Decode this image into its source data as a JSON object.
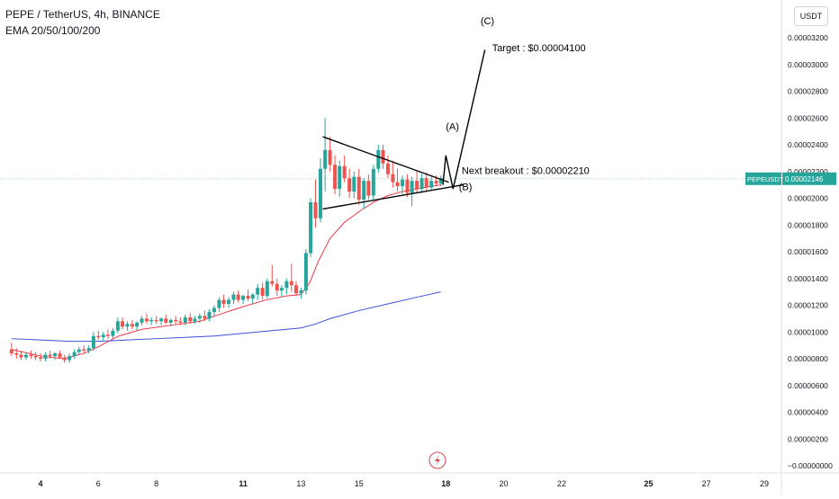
{
  "header": {
    "symbol_line": "PEPE / TetherUS, 4h, BINANCE",
    "indicator_line": "EMA 20/50/100/200"
  },
  "currency_button": "USDT",
  "last_price": {
    "label": "PEPEUSDT",
    "value": "0.00002146"
  },
  "colors": {
    "up": "#26a69a",
    "down": "#ef5350",
    "ema_fast": "#f23645",
    "ema_slow": "#3d4fd6",
    "price_line": "#9ad7d2",
    "annotation": "#000000"
  },
  "icons": {
    "replay": "lightning-icon"
  },
  "chart_data": {
    "type": "candlestick",
    "y_axis": {
      "unit": "USDT",
      "ticks": [
        {
          "value": 3.2e-05,
          "label": "0.00003200"
        },
        {
          "value": 3e-05,
          "label": "0.00003000"
        },
        {
          "value": 2.8e-05,
          "label": "0.00002800"
        },
        {
          "value": 2.6e-05,
          "label": "0.00002600"
        },
        {
          "value": 2.4e-05,
          "label": "0.00002400"
        },
        {
          "value": 2.2e-05,
          "label": "0.00002200"
        },
        {
          "value": 2e-05,
          "label": "0.00002000"
        },
        {
          "value": 1.8e-05,
          "label": "0.00001800"
        },
        {
          "value": 1.6e-05,
          "label": "0.00001600"
        },
        {
          "value": 1.4e-05,
          "label": "0.00001400"
        },
        {
          "value": 1.2e-05,
          "label": "0.00001200"
        },
        {
          "value": 1e-05,
          "label": "0.00001000"
        },
        {
          "value": 8e-06,
          "label": "0.00000800"
        },
        {
          "value": 6e-06,
          "label": "0.00000600"
        },
        {
          "value": 4e-06,
          "label": "0.00000400"
        },
        {
          "value": 2e-06,
          "label": "0.00000200"
        },
        {
          "value": 0,
          "label": "−0.00000000"
        }
      ]
    },
    "x_axis": {
      "ticks": [
        {
          "day": 4,
          "label": "4",
          "bold": true
        },
        {
          "day": 6,
          "label": "6",
          "bold": false
        },
        {
          "day": 8,
          "label": "8",
          "bold": false
        },
        {
          "day": 11,
          "label": "11",
          "bold": true
        },
        {
          "day": 13,
          "label": "13",
          "bold": false
        },
        {
          "day": 15,
          "label": "15",
          "bold": false
        },
        {
          "day": 18,
          "label": "18",
          "bold": true
        },
        {
          "day": 20,
          "label": "20",
          "bold": false
        },
        {
          "day": 22,
          "label": "22",
          "bold": false
        },
        {
          "day": 25,
          "label": "25",
          "bold": true
        },
        {
          "day": 27,
          "label": "27",
          "bold": false
        },
        {
          "day": 29,
          "label": "29",
          "bold": false
        }
      ]
    },
    "candles": [
      {
        "day": 3.0,
        "o": 8.7e-06,
        "h": 9.2e-06,
        "l": 8.2e-06,
        "c": 8.4e-06
      },
      {
        "day": 3.17,
        "o": 8.4e-06,
        "h": 8.8e-06,
        "l": 8e-06,
        "c": 8.3e-06
      },
      {
        "day": 3.33,
        "o": 8.3e-06,
        "h": 8.6e-06,
        "l": 7.9e-06,
        "c": 8.1e-06
      },
      {
        "day": 3.5,
        "o": 8.1e-06,
        "h": 8.5e-06,
        "l": 7.9e-06,
        "c": 8.3e-06
      },
      {
        "day": 3.67,
        "o": 8.3e-06,
        "h": 8.6e-06,
        "l": 8e-06,
        "c": 8.2e-06
      },
      {
        "day": 3.83,
        "o": 8.2e-06,
        "h": 8.5e-06,
        "l": 7.9e-06,
        "c": 8.1e-06
      },
      {
        "day": 4.0,
        "o": 8.1e-06,
        "h": 8.4e-06,
        "l": 7.8e-06,
        "c": 8e-06
      },
      {
        "day": 4.17,
        "o": 8e-06,
        "h": 8.5e-06,
        "l": 7.8e-06,
        "c": 8.3e-06
      },
      {
        "day": 4.33,
        "o": 8.3e-06,
        "h": 8.6e-06,
        "l": 8e-06,
        "c": 8.2e-06
      },
      {
        "day": 4.5,
        "o": 8.2e-06,
        "h": 8.5e-06,
        "l": 7.9e-06,
        "c": 8.4e-06
      },
      {
        "day": 4.67,
        "o": 8.4e-06,
        "h": 8.6e-06,
        "l": 8e-06,
        "c": 8.1e-06
      },
      {
        "day": 4.83,
        "o": 8.1e-06,
        "h": 8.3e-06,
        "l": 7.7e-06,
        "c": 7.9e-06
      },
      {
        "day": 5.0,
        "o": 7.9e-06,
        "h": 8.4e-06,
        "l": 7.7e-06,
        "c": 8.2e-06
      },
      {
        "day": 5.17,
        "o": 8.2e-06,
        "h": 8.7e-06,
        "l": 8e-06,
        "c": 8.5e-06
      },
      {
        "day": 5.33,
        "o": 8.5e-06,
        "h": 8.9e-06,
        "l": 8.3e-06,
        "c": 8.7e-06
      },
      {
        "day": 5.5,
        "o": 8.7e-06,
        "h": 9e-06,
        "l": 8.4e-06,
        "c": 8.6e-06
      },
      {
        "day": 5.67,
        "o": 8.6e-06,
        "h": 9e-06,
        "l": 8.4e-06,
        "c": 8.8e-06
      },
      {
        "day": 5.83,
        "o": 8.8e-06,
        "h": 1e-05,
        "l": 8.6e-06,
        "c": 9.7e-06
      },
      {
        "day": 6.0,
        "o": 9.7e-06,
        "h": 1.01e-05,
        "l": 9.4e-06,
        "c": 9.6e-06
      },
      {
        "day": 6.17,
        "o": 9.6e-06,
        "h": 1e-05,
        "l": 9.3e-06,
        "c": 9.8e-06
      },
      {
        "day": 6.33,
        "o": 9.8e-06,
        "h": 1.02e-05,
        "l": 9.5e-06,
        "c": 9.7e-06
      },
      {
        "day": 6.5,
        "o": 9.7e-06,
        "h": 1.03e-05,
        "l": 9.5e-06,
        "c": 1.01e-05
      },
      {
        "day": 6.67,
        "o": 1.01e-05,
        "h": 1.11e-05,
        "l": 9.9e-06,
        "c": 1.08e-05
      },
      {
        "day": 6.83,
        "o": 1.08e-05,
        "h": 1.11e-05,
        "l": 1.02e-05,
        "c": 1.04e-05
      },
      {
        "day": 7.0,
        "o": 1.04e-05,
        "h": 1.08e-05,
        "l": 1.01e-05,
        "c": 1.06e-05
      },
      {
        "day": 7.17,
        "o": 1.06e-05,
        "h": 1.09e-05,
        "l": 1.02e-05,
        "c": 1.04e-05
      },
      {
        "day": 7.33,
        "o": 1.04e-05,
        "h": 1.08e-05,
        "l": 1.01e-05,
        "c": 1.07e-05
      },
      {
        "day": 7.5,
        "o": 1.07e-05,
        "h": 1.12e-05,
        "l": 1.05e-05,
        "c": 1.1e-05
      },
      {
        "day": 7.67,
        "o": 1.1e-05,
        "h": 1.14e-05,
        "l": 1.06e-05,
        "c": 1.08e-05
      },
      {
        "day": 7.83,
        "o": 1.08e-05,
        "h": 1.11e-05,
        "l": 1.05e-05,
        "c": 1.09e-05
      },
      {
        "day": 8.0,
        "o": 1.09e-05,
        "h": 1.12e-05,
        "l": 1.06e-05,
        "c": 1.08e-05
      },
      {
        "day": 8.17,
        "o": 1.08e-05,
        "h": 1.11e-05,
        "l": 1.05e-05,
        "c": 1.1e-05
      },
      {
        "day": 8.33,
        "o": 1.1e-05,
        "h": 1.13e-05,
        "l": 1.06e-05,
        "c": 1.07e-05
      },
      {
        "day": 8.5,
        "o": 1.07e-05,
        "h": 1.1e-05,
        "l": 1.04e-05,
        "c": 1.09e-05
      },
      {
        "day": 8.67,
        "o": 1.09e-05,
        "h": 1.12e-05,
        "l": 1.06e-05,
        "c": 1.08e-05
      },
      {
        "day": 8.83,
        "o": 1.08e-05,
        "h": 1.11e-05,
        "l": 1.05e-05,
        "c": 1.07e-05
      },
      {
        "day": 9.0,
        "o": 1.07e-05,
        "h": 1.13e-05,
        "l": 1.05e-05,
        "c": 1.11e-05
      },
      {
        "day": 9.17,
        "o": 1.11e-05,
        "h": 1.14e-05,
        "l": 1.06e-05,
        "c": 1.08e-05
      },
      {
        "day": 9.33,
        "o": 1.08e-05,
        "h": 1.12e-05,
        "l": 1.06e-05,
        "c": 1.1e-05
      },
      {
        "day": 9.5,
        "o": 1.1e-05,
        "h": 1.14e-05,
        "l": 1.07e-05,
        "c": 1.12e-05
      },
      {
        "day": 9.67,
        "o": 1.12e-05,
        "h": 1.16e-05,
        "l": 1.08e-05,
        "c": 1.1e-05
      },
      {
        "day": 9.83,
        "o": 1.1e-05,
        "h": 1.17e-05,
        "l": 1.08e-05,
        "c": 1.15e-05
      },
      {
        "day": 10.0,
        "o": 1.15e-05,
        "h": 1.2e-05,
        "l": 1.12e-05,
        "c": 1.18e-05
      },
      {
        "day": 10.17,
        "o": 1.18e-05,
        "h": 1.26e-05,
        "l": 1.15e-05,
        "c": 1.24e-05
      },
      {
        "day": 10.33,
        "o": 1.24e-05,
        "h": 1.28e-05,
        "l": 1.18e-05,
        "c": 1.21e-05
      },
      {
        "day": 10.5,
        "o": 1.21e-05,
        "h": 1.26e-05,
        "l": 1.18e-05,
        "c": 1.24e-05
      },
      {
        "day": 10.67,
        "o": 1.24e-05,
        "h": 1.3e-05,
        "l": 1.21e-05,
        "c": 1.28e-05
      },
      {
        "day": 10.83,
        "o": 1.28e-05,
        "h": 1.31e-05,
        "l": 1.22e-05,
        "c": 1.24e-05
      },
      {
        "day": 11.0,
        "o": 1.24e-05,
        "h": 1.28e-05,
        "l": 1.21e-05,
        "c": 1.27e-05
      },
      {
        "day": 11.17,
        "o": 1.27e-05,
        "h": 1.32e-05,
        "l": 1.23e-05,
        "c": 1.25e-05
      },
      {
        "day": 11.33,
        "o": 1.25e-05,
        "h": 1.29e-05,
        "l": 1.21e-05,
        "c": 1.28e-05
      },
      {
        "day": 11.5,
        "o": 1.28e-05,
        "h": 1.36e-05,
        "l": 1.24e-05,
        "c": 1.33e-05
      },
      {
        "day": 11.67,
        "o": 1.33e-05,
        "h": 1.37e-05,
        "l": 1.24e-05,
        "c": 1.27e-05
      },
      {
        "day": 11.83,
        "o": 1.27e-05,
        "h": 1.4e-05,
        "l": 1.25e-05,
        "c": 1.38e-05
      },
      {
        "day": 12.0,
        "o": 1.38e-05,
        "h": 1.5e-05,
        "l": 1.34e-05,
        "c": 1.36e-05
      },
      {
        "day": 12.17,
        "o": 1.36e-05,
        "h": 1.4e-05,
        "l": 1.27e-05,
        "c": 1.31e-05
      },
      {
        "day": 12.33,
        "o": 1.31e-05,
        "h": 1.35e-05,
        "l": 1.26e-05,
        "c": 1.33e-05
      },
      {
        "day": 12.5,
        "o": 1.33e-05,
        "h": 1.4e-05,
        "l": 1.28e-05,
        "c": 1.38e-05
      },
      {
        "day": 12.67,
        "o": 1.38e-05,
        "h": 1.51e-05,
        "l": 1.3e-05,
        "c": 1.35e-05
      },
      {
        "day": 12.83,
        "o": 1.35e-05,
        "h": 1.38e-05,
        "l": 1.27e-05,
        "c": 1.29e-05
      },
      {
        "day": 13.0,
        "o": 1.29e-05,
        "h": 1.33e-05,
        "l": 1.25e-05,
        "c": 1.31e-05
      },
      {
        "day": 13.17,
        "o": 1.31e-05,
        "h": 1.62e-05,
        "l": 1.28e-05,
        "c": 1.59e-05
      },
      {
        "day": 13.33,
        "o": 1.59e-05,
        "h": 2e-05,
        "l": 1.56e-05,
        "c": 1.97e-05
      },
      {
        "day": 13.5,
        "o": 1.97e-05,
        "h": 2.14e-05,
        "l": 1.78e-05,
        "c": 1.85e-05
      },
      {
        "day": 13.67,
        "o": 1.85e-05,
        "h": 2.3e-05,
        "l": 1.82e-05,
        "c": 2.22e-05
      },
      {
        "day": 13.83,
        "o": 2.22e-05,
        "h": 2.6e-05,
        "l": 2.05e-05,
        "c": 2.36e-05
      },
      {
        "day": 14.0,
        "o": 2.36e-05,
        "h": 2.46e-05,
        "l": 2.2e-05,
        "c": 2.25e-05
      },
      {
        "day": 14.17,
        "o": 2.25e-05,
        "h": 2.32e-05,
        "l": 2.03e-05,
        "c": 2.07e-05
      },
      {
        "day": 14.33,
        "o": 2.07e-05,
        "h": 2.28e-05,
        "l": 2.01e-05,
        "c": 2.24e-05
      },
      {
        "day": 14.5,
        "o": 2.24e-05,
        "h": 2.32e-05,
        "l": 2.12e-05,
        "c": 2.15e-05
      },
      {
        "day": 14.67,
        "o": 2.15e-05,
        "h": 2.22e-05,
        "l": 2e-05,
        "c": 2.05e-05
      },
      {
        "day": 14.83,
        "o": 2.05e-05,
        "h": 2.2e-05,
        "l": 2e-05,
        "c": 2.16e-05
      },
      {
        "day": 15.0,
        "o": 2.16e-05,
        "h": 2.22e-05,
        "l": 1.95e-05,
        "c": 1.99e-05
      },
      {
        "day": 15.17,
        "o": 1.99e-05,
        "h": 2.15e-05,
        "l": 1.92e-05,
        "c": 2.13e-05
      },
      {
        "day": 15.33,
        "o": 2.13e-05,
        "h": 2.18e-05,
        "l": 1.99e-05,
        "c": 2.02e-05
      },
      {
        "day": 15.5,
        "o": 2.02e-05,
        "h": 2.25e-05,
        "l": 1.99e-05,
        "c": 2.22e-05
      },
      {
        "day": 15.67,
        "o": 2.22e-05,
        "h": 2.4e-05,
        "l": 2.19e-05,
        "c": 2.36e-05
      },
      {
        "day": 15.83,
        "o": 2.36e-05,
        "h": 2.4e-05,
        "l": 2.22e-05,
        "c": 2.26e-05
      },
      {
        "day": 16.0,
        "o": 2.26e-05,
        "h": 2.32e-05,
        "l": 2.15e-05,
        "c": 2.18e-05
      },
      {
        "day": 16.17,
        "o": 2.18e-05,
        "h": 2.28e-05,
        "l": 2.08e-05,
        "c": 2.12e-05
      },
      {
        "day": 16.33,
        "o": 2.12e-05,
        "h": 2.22e-05,
        "l": 2.05e-05,
        "c": 2.09e-05
      },
      {
        "day": 16.5,
        "o": 2.09e-05,
        "h": 2.17e-05,
        "l": 2.03e-05,
        "c": 2.14e-05
      },
      {
        "day": 16.67,
        "o": 2.14e-05,
        "h": 2.18e-05,
        "l": 2.01e-05,
        "c": 2.04e-05
      },
      {
        "day": 16.83,
        "o": 2.04e-05,
        "h": 2.16e-05,
        "l": 1.94e-05,
        "c": 2.13e-05
      },
      {
        "day": 17.0,
        "o": 2.13e-05,
        "h": 2.2e-05,
        "l": 2.04e-05,
        "c": 2.07e-05
      },
      {
        "day": 17.17,
        "o": 2.07e-05,
        "h": 2.18e-05,
        "l": 2.04e-05,
        "c": 2.15e-05
      },
      {
        "day": 17.33,
        "o": 2.15e-05,
        "h": 2.19e-05,
        "l": 2.05e-05,
        "c": 2.08e-05
      },
      {
        "day": 17.5,
        "o": 2.08e-05,
        "h": 2.16e-05,
        "l": 2.06e-05,
        "c": 2.13e-05
      },
      {
        "day": 17.67,
        "o": 2.13e-05,
        "h": 2.17e-05,
        "l": 2.09e-05,
        "c": 2.11e-05
      },
      {
        "day": 17.83,
        "o": 2.11e-05,
        "h": 2.17e-05,
        "l": 2.09e-05,
        "c": 2.15e-05
      }
    ],
    "ema_fast": [
      {
        "day": 3.0,
        "v": 8.7e-06
      },
      {
        "day": 4.0,
        "v": 8.2e-06
      },
      {
        "day": 4.8,
        "v": 8e-06
      },
      {
        "day": 5.5,
        "v": 8.4e-06
      },
      {
        "day": 6.0,
        "v": 8.9e-06
      },
      {
        "day": 6.7,
        "v": 9.7e-06
      },
      {
        "day": 7.5,
        "v": 1.02e-05
      },
      {
        "day": 8.5,
        "v": 1.05e-05
      },
      {
        "day": 9.5,
        "v": 1.08e-05
      },
      {
        "day": 10.3,
        "v": 1.14e-05
      },
      {
        "day": 11.0,
        "v": 1.19e-05
      },
      {
        "day": 11.8,
        "v": 1.24e-05
      },
      {
        "day": 12.5,
        "v": 1.27e-05
      },
      {
        "day": 13.0,
        "v": 1.28e-05
      },
      {
        "day": 13.3,
        "v": 1.37e-05
      },
      {
        "day": 13.6,
        "v": 1.53e-05
      },
      {
        "day": 14.0,
        "v": 1.7e-05
      },
      {
        "day": 14.5,
        "v": 1.82e-05
      },
      {
        "day": 15.0,
        "v": 1.9e-05
      },
      {
        "day": 15.5,
        "v": 1.97e-05
      },
      {
        "day": 16.0,
        "v": 2.02e-05
      },
      {
        "day": 16.5,
        "v": 2.05e-05
      },
      {
        "day": 17.0,
        "v": 2.07e-05
      },
      {
        "day": 17.5,
        "v": 2.09e-05
      },
      {
        "day": 17.83,
        "v": 2.1e-05
      }
    ],
    "ema_slow": [
      {
        "day": 3.0,
        "v": 9.5e-06
      },
      {
        "day": 4.0,
        "v": 9.4e-06
      },
      {
        "day": 5.0,
        "v": 9.3e-06
      },
      {
        "day": 6.0,
        "v": 9.3e-06
      },
      {
        "day": 7.0,
        "v": 9.4e-06
      },
      {
        "day": 8.0,
        "v": 9.5e-06
      },
      {
        "day": 9.0,
        "v": 9.6e-06
      },
      {
        "day": 10.0,
        "v": 9.7e-06
      },
      {
        "day": 11.0,
        "v": 9.9e-06
      },
      {
        "day": 12.0,
        "v": 1.01e-05
      },
      {
        "day": 13.0,
        "v": 1.03e-05
      },
      {
        "day": 13.5,
        "v": 1.06e-05
      },
      {
        "day": 14.0,
        "v": 1.1e-05
      },
      {
        "day": 15.0,
        "v": 1.16e-05
      },
      {
        "day": 16.0,
        "v": 1.21e-05
      },
      {
        "day": 17.0,
        "v": 1.26e-05
      },
      {
        "day": 17.83,
        "v": 1.3e-05
      }
    ],
    "drawings": {
      "triangle_upper": [
        {
          "day": 13.75,
          "v": 2.46e-05
        },
        {
          "day": 18.1,
          "v": 2.12e-05
        }
      ],
      "triangle_lower": [
        {
          "day": 13.75,
          "v": 1.92e-05
        },
        {
          "day": 18.6,
          "v": 2.1e-05
        }
      ],
      "wave_path": [
        {
          "day": 17.9,
          "v": 2.1e-05
        },
        {
          "day": 18.0,
          "v": 2.32e-05
        },
        {
          "day": 18.25,
          "v": 2.07e-05
        },
        {
          "day": 19.35,
          "v": 3.11e-05
        }
      ],
      "labels": [
        {
          "text": "(C)",
          "day": 19.2,
          "v": 3.3e-05
        },
        {
          "text": "Target : $0.00004100",
          "day": 19.6,
          "v": 3.1e-05
        },
        {
          "text": "(A)",
          "day": 18.0,
          "v": 2.51e-05
        },
        {
          "text": "Next breakout : $0.00002210",
          "day": 18.55,
          "v": 2.18e-05
        },
        {
          "text": "(B)",
          "day": 18.45,
          "v": 2.06e-05
        }
      ]
    }
  }
}
